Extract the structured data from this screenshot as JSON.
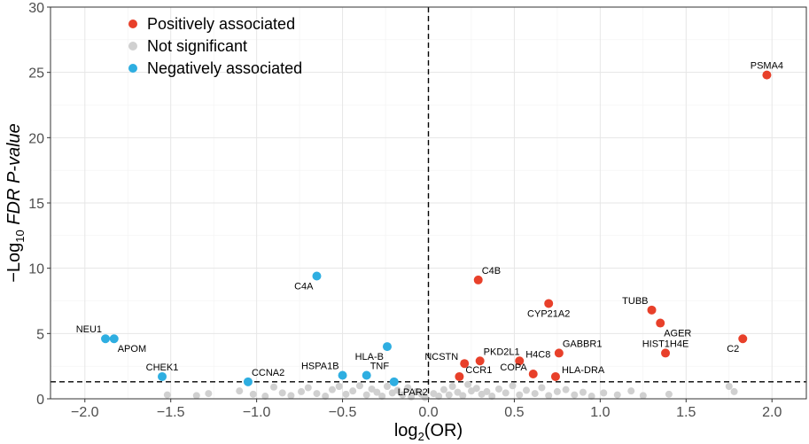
{
  "chart_data": {
    "type": "scatter",
    "title": "",
    "xlabel": "log2(OR)",
    "xlabel_parts": {
      "pre": "log",
      "sub": "2",
      "post": "(OR)"
    },
    "ylabel": "−Log10 FDR P-value",
    "ylabel_parts": {
      "pre": "−Log",
      "sub": "10",
      "italic": " FDR P-value"
    },
    "xlim": [
      -2.2,
      2.2
    ],
    "ylim": [
      0,
      30
    ],
    "xticks": [
      -2.0,
      -1.5,
      -1.0,
      -0.5,
      0.0,
      0.5,
      1.0,
      1.5,
      2.0
    ],
    "xtick_labels": [
      "−2.0",
      "−1.5",
      "−1.0",
      "−0.5",
      "0.0",
      "0.5",
      "1.0",
      "1.5",
      "2.0"
    ],
    "yticks": [
      0,
      5,
      10,
      15,
      20,
      25,
      30
    ],
    "ytick_labels": [
      "0",
      "5",
      "10",
      "15",
      "20",
      "25",
      "30"
    ],
    "grid": true,
    "threshold_y": 1.3,
    "threshold_x": 0,
    "legend_position": "top-left",
    "colors": {
      "positive": "#e8402a",
      "neutral": "#d0d0d0",
      "negative": "#2eaee1"
    },
    "legend": [
      {
        "label": "Positively associated",
        "group": "positive"
      },
      {
        "label": "Not significant",
        "group": "neutral"
      },
      {
        "label": "Negatively associated",
        "group": "negative"
      }
    ],
    "series": [
      {
        "name": "Positively associated",
        "group": "positive",
        "points": [
          {
            "label": "PSMA4",
            "x": 1.97,
            "y": 24.8,
            "anchor": "above"
          },
          {
            "label": "C4B",
            "x": 0.29,
            "y": 9.1,
            "anchor": "above-right"
          },
          {
            "label": "CYP21A2",
            "x": 0.7,
            "y": 7.3,
            "anchor": "below"
          },
          {
            "label": "TUBB",
            "x": 1.3,
            "y": 6.8,
            "anchor": "above-left"
          },
          {
            "label": "AGER",
            "x": 1.35,
            "y": 5.8,
            "anchor": "below-right"
          },
          {
            "label": "C2",
            "x": 1.83,
            "y": 4.6,
            "anchor": "below-left"
          },
          {
            "label": "HIST1H4E",
            "x": 1.38,
            "y": 3.5,
            "anchor": "above"
          },
          {
            "label": "GABBR1",
            "x": 0.76,
            "y": 3.5,
            "anchor": "above-right"
          },
          {
            "label": "PKD2L1",
            "x": 0.3,
            "y": 2.9,
            "anchor": "above-right"
          },
          {
            "label": "H4C8",
            "x": 0.53,
            "y": 2.9,
            "anchor": "right"
          },
          {
            "label": "NCSTN",
            "x": 0.21,
            "y": 2.7,
            "anchor": "left"
          },
          {
            "label": "COPA",
            "x": 0.61,
            "y": 1.9,
            "anchor": "left"
          },
          {
            "label": "CCR1",
            "x": 0.18,
            "y": 1.7,
            "anchor": "right"
          },
          {
            "label": "HLA-DRA",
            "x": 0.74,
            "y": 1.7,
            "anchor": "right"
          }
        ]
      },
      {
        "name": "Negatively associated",
        "group": "negative",
        "points": [
          {
            "label": "C4A",
            "x": -0.65,
            "y": 9.4,
            "anchor": "below-left"
          },
          {
            "label": "NEU1",
            "x": -1.88,
            "y": 4.6,
            "anchor": "above-left"
          },
          {
            "label": "APOM",
            "x": -1.83,
            "y": 4.6,
            "anchor": "below-right"
          },
          {
            "label": "HLA-B",
            "x": -0.24,
            "y": 4.0,
            "anchor": "below-left"
          },
          {
            "label": "HSPA1B",
            "x": -0.5,
            "y": 1.8,
            "anchor": "above-left"
          },
          {
            "label": "TNF",
            "x": -0.36,
            "y": 1.8,
            "anchor": "above-right"
          },
          {
            "label": "CHEK1",
            "x": -1.55,
            "y": 1.7,
            "anchor": "above"
          },
          {
            "label": "CCNA2",
            "x": -1.05,
            "y": 1.3,
            "anchor": "above-right"
          },
          {
            "label": "LPAR2",
            "x": -0.2,
            "y": 1.3,
            "anchor": "below-right"
          }
        ]
      },
      {
        "name": "Not significant",
        "group": "neutral",
        "points": [
          {
            "x": -1.52,
            "y": 0.3
          },
          {
            "x": -1.35,
            "y": 0.25
          },
          {
            "x": -1.28,
            "y": 0.4
          },
          {
            "x": -1.1,
            "y": 0.6
          },
          {
            "x": -1.02,
            "y": 0.35
          },
          {
            "x": -0.95,
            "y": 0.2
          },
          {
            "x": -0.9,
            "y": 0.9
          },
          {
            "x": -0.85,
            "y": 0.45
          },
          {
            "x": -0.8,
            "y": 0.25
          },
          {
            "x": -0.74,
            "y": 0.55
          },
          {
            "x": -0.7,
            "y": 0.85
          },
          {
            "x": -0.65,
            "y": 0.4
          },
          {
            "x": -0.6,
            "y": 0.2
          },
          {
            "x": -0.56,
            "y": 0.7
          },
          {
            "x": -0.52,
            "y": 0.95
          },
          {
            "x": -0.48,
            "y": 0.35
          },
          {
            "x": -0.44,
            "y": 0.6
          },
          {
            "x": -0.4,
            "y": 1.0
          },
          {
            "x": -0.36,
            "y": 0.3
          },
          {
            "x": -0.33,
            "y": 0.75
          },
          {
            "x": -0.3,
            "y": 0.5
          },
          {
            "x": -0.27,
            "y": 0.2
          },
          {
            "x": -0.24,
            "y": 0.95
          },
          {
            "x": -0.21,
            "y": 0.45
          },
          {
            "x": -0.18,
            "y": 0.65
          },
          {
            "x": -0.15,
            "y": 0.3
          },
          {
            "x": -0.12,
            "y": 0.85
          },
          {
            "x": -0.1,
            "y": 0.15
          },
          {
            "x": -0.07,
            "y": 0.55
          },
          {
            "x": -0.04,
            "y": 0.35
          },
          {
            "x": -0.02,
            "y": 0.1
          },
          {
            "x": 0.03,
            "y": 0.4
          },
          {
            "x": 0.06,
            "y": 0.2
          },
          {
            "x": 0.09,
            "y": 0.7
          },
          {
            "x": 0.12,
            "y": 0.3
          },
          {
            "x": 0.14,
            "y": 0.95
          },
          {
            "x": 0.17,
            "y": 0.5
          },
          {
            "x": 0.2,
            "y": 0.25
          },
          {
            "x": 0.23,
            "y": 1.1
          },
          {
            "x": 0.25,
            "y": 0.6
          },
          {
            "x": 0.28,
            "y": 0.8
          },
          {
            "x": 0.31,
            "y": 0.35
          },
          {
            "x": 0.34,
            "y": 0.55
          },
          {
            "x": 0.37,
            "y": 0.2
          },
          {
            "x": 0.41,
            "y": 0.75
          },
          {
            "x": 0.45,
            "y": 0.45
          },
          {
            "x": 0.49,
            "y": 1.0
          },
          {
            "x": 0.53,
            "y": 0.3
          },
          {
            "x": 0.57,
            "y": 0.65
          },
          {
            "x": 0.62,
            "y": 0.4
          },
          {
            "x": 0.66,
            "y": 0.85
          },
          {
            "x": 0.7,
            "y": 0.25
          },
          {
            "x": 0.75,
            "y": 0.55
          },
          {
            "x": 0.8,
            "y": 0.7
          },
          {
            "x": 0.85,
            "y": 0.3
          },
          {
            "x": 0.9,
            "y": 0.5
          },
          {
            "x": 0.95,
            "y": 0.2
          },
          {
            "x": 1.02,
            "y": 0.45
          },
          {
            "x": 1.1,
            "y": 0.3
          },
          {
            "x": 1.18,
            "y": 0.6
          },
          {
            "x": 1.25,
            "y": 0.25
          },
          {
            "x": 1.4,
            "y": 0.35
          },
          {
            "x": 1.75,
            "y": 0.95
          },
          {
            "x": 1.78,
            "y": 0.55
          }
        ]
      }
    ]
  }
}
